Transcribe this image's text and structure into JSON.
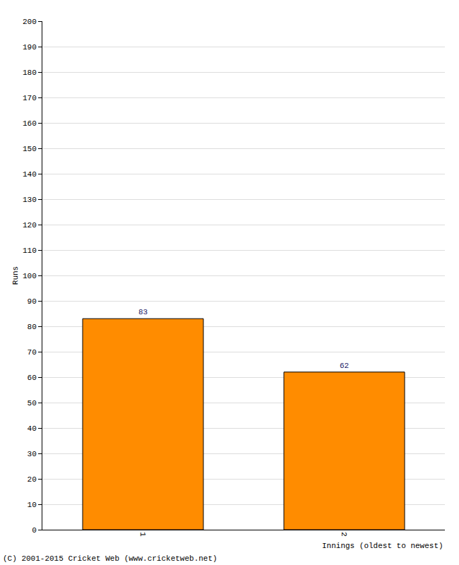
{
  "chart_data": {
    "type": "bar",
    "x_label": "Innings (oldest to newest)",
    "y_label": "Runs",
    "categories": [
      "1",
      "2"
    ],
    "values": [
      83,
      62
    ],
    "color": "#ff8c00",
    "ylim": [
      0,
      200
    ],
    "yticks": [
      0,
      10,
      20,
      30,
      40,
      50,
      60,
      70,
      80,
      90,
      100,
      110,
      120,
      130,
      140,
      150,
      160,
      170,
      180,
      190,
      200
    ],
    "grid": true,
    "data_labels": true,
    "annotations": [
      "(C) 2001-2015 Cricket Web (www.cricketweb.net)"
    ]
  }
}
